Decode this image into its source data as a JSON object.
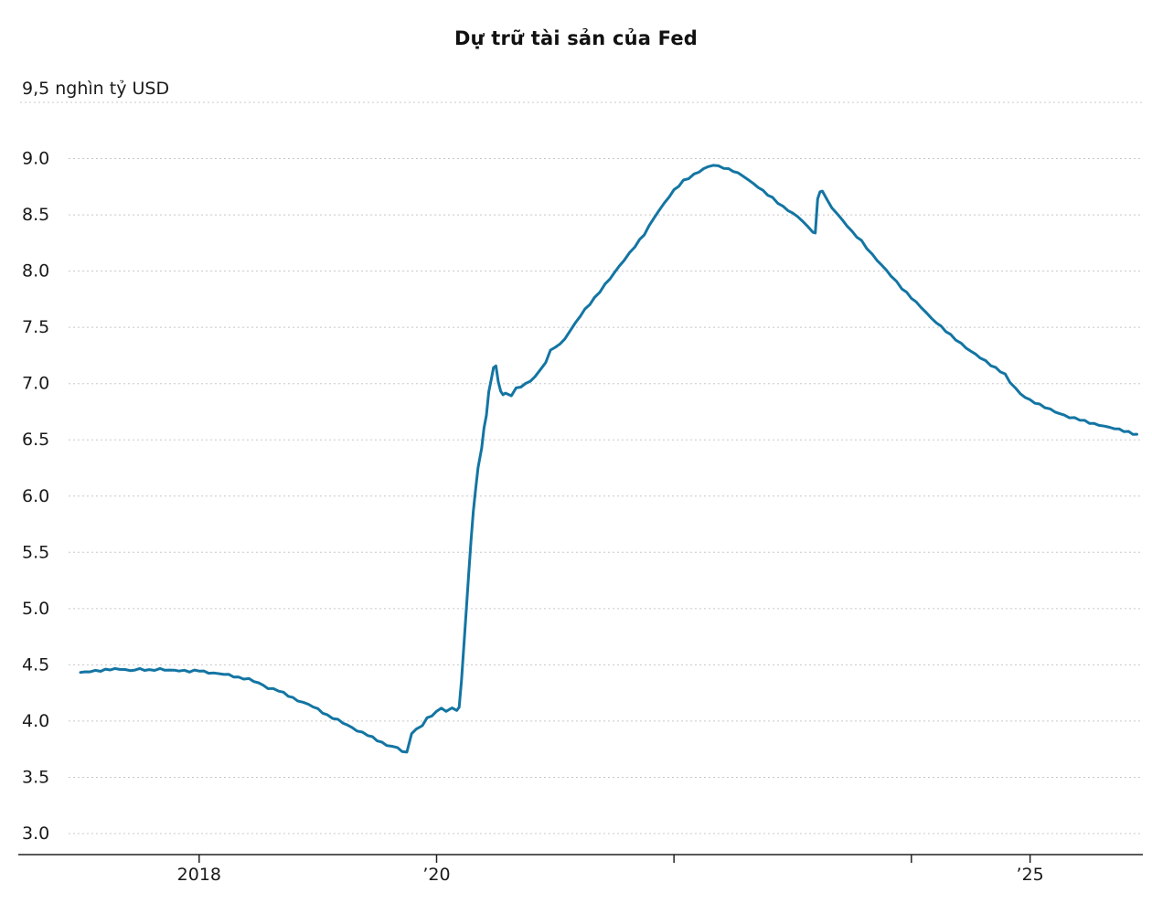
{
  "chart_data": {
    "type": "line",
    "title": "Dự trữ tài sản của Fed",
    "unit_label": "9,5 nghìn tỷ USD",
    "xlabel": "",
    "ylabel": "nghìn tỷ USD",
    "xlim": [
      2017.0,
      2025.95
    ],
    "ylim": [
      3.0,
      9.5
    ],
    "grid": true,
    "line_color": "#1375a3",
    "grid_color": "#c8c8c8",
    "axis_color": "#222222",
    "text_color": "#1a1a1a",
    "y_ticks": [
      {
        "v": 9.5,
        "label": ""
      },
      {
        "v": 9.0,
        "label": "9.0"
      },
      {
        "v": 8.5,
        "label": "8.5"
      },
      {
        "v": 8.0,
        "label": "8.0"
      },
      {
        "v": 7.5,
        "label": "7.5"
      },
      {
        "v": 7.0,
        "label": "7.0"
      },
      {
        "v": 6.5,
        "label": "6.5"
      },
      {
        "v": 6.0,
        "label": "6.0"
      },
      {
        "v": 5.5,
        "label": "5.5"
      },
      {
        "v": 5.0,
        "label": "5.0"
      },
      {
        "v": 4.5,
        "label": "4.5"
      },
      {
        "v": 4.0,
        "label": "4.0"
      },
      {
        "v": 3.5,
        "label": "3.5"
      },
      {
        "v": 3.0,
        "label": "3.0"
      }
    ],
    "x_ticks": [
      {
        "v": 2018,
        "label": "2018"
      },
      {
        "v": 2020,
        "label": "’20"
      },
      {
        "v": 2022,
        "label": ""
      },
      {
        "v": 2024,
        "label": ""
      },
      {
        "v": 2025,
        "label": "’25"
      }
    ],
    "points": [
      [
        2017.0,
        4.42
      ],
      [
        2017.08,
        4.43
      ],
      [
        2017.17,
        4.44
      ],
      [
        2017.25,
        4.45
      ],
      [
        2017.33,
        4.45
      ],
      [
        2017.42,
        4.44
      ],
      [
        2017.5,
        4.45
      ],
      [
        2017.58,
        4.44
      ],
      [
        2017.67,
        4.45
      ],
      [
        2017.75,
        4.44
      ],
      [
        2017.83,
        4.44
      ],
      [
        2017.92,
        4.43
      ],
      [
        2018.0,
        4.44
      ],
      [
        2018.08,
        4.42
      ],
      [
        2018.17,
        4.41
      ],
      [
        2018.25,
        4.4
      ],
      [
        2018.33,
        4.38
      ],
      [
        2018.42,
        4.36
      ],
      [
        2018.5,
        4.33
      ],
      [
        2018.58,
        4.29
      ],
      [
        2018.67,
        4.26
      ],
      [
        2018.75,
        4.22
      ],
      [
        2018.83,
        4.18
      ],
      [
        2018.92,
        4.14
      ],
      [
        2019.0,
        4.1
      ],
      [
        2019.08,
        4.05
      ],
      [
        2019.17,
        4.0
      ],
      [
        2019.25,
        3.96
      ],
      [
        2019.33,
        3.92
      ],
      [
        2019.42,
        3.87
      ],
      [
        2019.5,
        3.83
      ],
      [
        2019.58,
        3.79
      ],
      [
        2019.67,
        3.76
      ],
      [
        2019.71,
        3.73
      ],
      [
        2019.75,
        3.72
      ],
      [
        2019.79,
        3.9
      ],
      [
        2019.83,
        3.93
      ],
      [
        2019.88,
        3.96
      ],
      [
        2019.92,
        4.02
      ],
      [
        2019.96,
        4.05
      ],
      [
        2020.0,
        4.09
      ],
      [
        2020.04,
        4.12
      ],
      [
        2020.08,
        4.1
      ],
      [
        2020.13,
        4.11
      ],
      [
        2020.17,
        4.1
      ],
      [
        2020.19,
        4.12
      ],
      [
        2020.21,
        4.36
      ],
      [
        2020.23,
        4.67
      ],
      [
        2020.25,
        5.0
      ],
      [
        2020.27,
        5.3
      ],
      [
        2020.29,
        5.6
      ],
      [
        2020.31,
        5.85
      ],
      [
        2020.33,
        6.08
      ],
      [
        2020.35,
        6.25
      ],
      [
        2020.38,
        6.42
      ],
      [
        2020.4,
        6.6
      ],
      [
        2020.42,
        6.72
      ],
      [
        2020.44,
        6.93
      ],
      [
        2020.46,
        7.04
      ],
      [
        2020.48,
        7.13
      ],
      [
        2020.5,
        7.16
      ],
      [
        2020.52,
        7.01
      ],
      [
        2020.54,
        6.95
      ],
      [
        2020.56,
        6.89
      ],
      [
        2020.58,
        6.92
      ],
      [
        2020.63,
        6.9
      ],
      [
        2020.67,
        6.96
      ],
      [
        2020.71,
        6.98
      ],
      [
        2020.75,
        7.01
      ],
      [
        2020.79,
        7.03
      ],
      [
        2020.83,
        7.08
      ],
      [
        2020.88,
        7.13
      ],
      [
        2020.92,
        7.2
      ],
      [
        2020.96,
        7.3
      ],
      [
        2021.0,
        7.34
      ],
      [
        2021.04,
        7.36
      ],
      [
        2021.08,
        7.41
      ],
      [
        2021.17,
        7.55
      ],
      [
        2021.25,
        7.67
      ],
      [
        2021.33,
        7.77
      ],
      [
        2021.42,
        7.89
      ],
      [
        2021.5,
        8.0
      ],
      [
        2021.58,
        8.11
      ],
      [
        2021.67,
        8.23
      ],
      [
        2021.75,
        8.34
      ],
      [
        2021.83,
        8.48
      ],
      [
        2021.92,
        8.62
      ],
      [
        2022.0,
        8.73
      ],
      [
        2022.08,
        8.81
      ],
      [
        2022.17,
        8.87
      ],
      [
        2022.25,
        8.92
      ],
      [
        2022.33,
        8.95
      ],
      [
        2022.42,
        8.93
      ],
      [
        2022.5,
        8.9
      ],
      [
        2022.58,
        8.85
      ],
      [
        2022.67,
        8.79
      ],
      [
        2022.75,
        8.72
      ],
      [
        2022.83,
        8.65
      ],
      [
        2022.92,
        8.58
      ],
      [
        2023.0,
        8.52
      ],
      [
        2023.08,
        8.45
      ],
      [
        2023.13,
        8.4
      ],
      [
        2023.17,
        8.36
      ],
      [
        2023.19,
        8.33
      ],
      [
        2023.21,
        8.64
      ],
      [
        2023.23,
        8.7
      ],
      [
        2023.25,
        8.72
      ],
      [
        2023.29,
        8.63
      ],
      [
        2023.33,
        8.56
      ],
      [
        2023.38,
        8.51
      ],
      [
        2023.42,
        8.46
      ],
      [
        2023.5,
        8.35
      ],
      [
        2023.58,
        8.26
      ],
      [
        2023.67,
        8.15
      ],
      [
        2023.75,
        8.05
      ],
      [
        2023.83,
        7.95
      ],
      [
        2023.92,
        7.85
      ],
      [
        2024.0,
        7.76
      ],
      [
        2024.08,
        7.67
      ],
      [
        2024.17,
        7.58
      ],
      [
        2024.25,
        7.5
      ],
      [
        2024.33,
        7.42
      ],
      [
        2024.42,
        7.35
      ],
      [
        2024.5,
        7.28
      ],
      [
        2024.58,
        7.22
      ],
      [
        2024.67,
        7.16
      ],
      [
        2024.75,
        7.1
      ],
      [
        2024.79,
        7.07
      ],
      [
        2024.83,
        7.0
      ],
      [
        2024.88,
        6.95
      ],
      [
        2024.92,
        6.9
      ],
      [
        2024.96,
        6.87
      ],
      [
        2025.0,
        6.84
      ],
      [
        2025.08,
        6.8
      ],
      [
        2025.17,
        6.76
      ],
      [
        2025.25,
        6.72
      ],
      [
        2025.33,
        6.69
      ],
      [
        2025.42,
        6.67
      ],
      [
        2025.5,
        6.64
      ],
      [
        2025.58,
        6.62
      ],
      [
        2025.67,
        6.6
      ],
      [
        2025.75,
        6.58
      ],
      [
        2025.83,
        6.56
      ],
      [
        2025.9,
        6.55
      ]
    ]
  }
}
